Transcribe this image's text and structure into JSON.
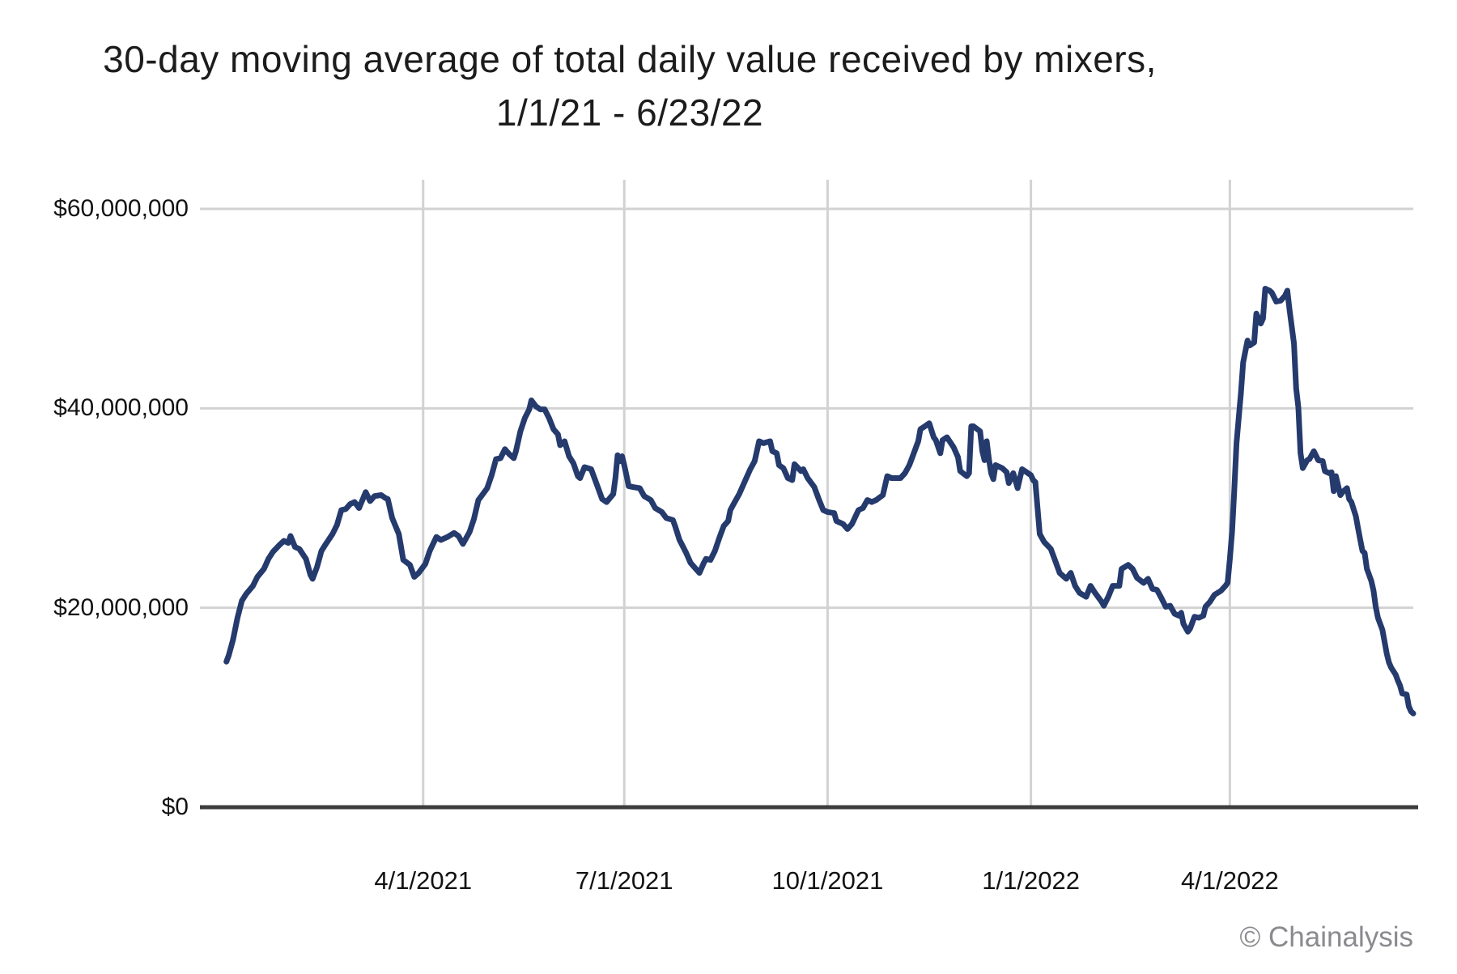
{
  "title": {
    "line1": "30-day moving average of total daily value received by mixers,",
    "line2": "1/1/21 - 6/23/22"
  },
  "watermark": "© Chainalysis",
  "colors": {
    "line": "#253a6d",
    "grid": "#d2d2d2",
    "axis": "#3d3d3d",
    "text": "#121212",
    "watermark": "#8a8a8f",
    "background": "#ffffff"
  },
  "chart_data": {
    "type": "line",
    "title": "30-day moving average of total daily value received by mixers, 1/1/21 - 6/23/22",
    "series_name": "30-day moving average of total daily value received by mixers (USD)",
    "unit": "USD, values stored in millions",
    "grid": true,
    "legend": false,
    "x_axis": {
      "start_date": "2021-01-01",
      "end_date": "2022-06-23",
      "total_days": 538,
      "tick_labels": [
        "4/1/2021",
        "7/1/2021",
        "10/1/2021",
        "1/1/2022",
        "4/1/2022"
      ],
      "tick_day_offsets": [
        90,
        181,
        273,
        365,
        455
      ]
    },
    "y_axis": {
      "tick_labels": [
        "$0",
        "$20,000,000",
        "$40,000,000",
        "$60,000,000"
      ],
      "tick_values_millions": [
        0,
        20,
        40,
        60
      ],
      "range_millions": [
        0,
        60
      ]
    },
    "points_day_valueM": [
      [
        1,
        14.6
      ],
      [
        2,
        15.2
      ],
      [
        4,
        16.8
      ],
      [
        6,
        19.0
      ],
      [
        8,
        20.7
      ],
      [
        10,
        21.4
      ],
      [
        13,
        22.2
      ],
      [
        15,
        23.1
      ],
      [
        18,
        23.9
      ],
      [
        20,
        24.9
      ],
      [
        22,
        25.6
      ],
      [
        25,
        26.3
      ],
      [
        27,
        26.7
      ],
      [
        29,
        26.5
      ],
      [
        30,
        27.2
      ],
      [
        32,
        26.1
      ],
      [
        34,
        25.9
      ],
      [
        37,
        24.9
      ],
      [
        39,
        23.3
      ],
      [
        40,
        22.9
      ],
      [
        42,
        24.1
      ],
      [
        44,
        25.7
      ],
      [
        46,
        26.4
      ],
      [
        49,
        27.4
      ],
      [
        51,
        28.3
      ],
      [
        53,
        29.8
      ],
      [
        55,
        29.9
      ],
      [
        57,
        30.4
      ],
      [
        59,
        30.6
      ],
      [
        61,
        30.0
      ],
      [
        64,
        31.6
      ],
      [
        66,
        30.7
      ],
      [
        68,
        31.2
      ],
      [
        71,
        31.3
      ],
      [
        73,
        31.0
      ],
      [
        74,
        30.9
      ],
      [
        76,
        29.0
      ],
      [
        79,
        27.4
      ],
      [
        81,
        24.8
      ],
      [
        84,
        24.3
      ],
      [
        86,
        23.1
      ],
      [
        88,
        23.5
      ],
      [
        91,
        24.4
      ],
      [
        93,
        25.7
      ],
      [
        96,
        27.1
      ],
      [
        98,
        26.8
      ],
      [
        101,
        27.1
      ],
      [
        104,
        27.5
      ],
      [
        106,
        27.2
      ],
      [
        108,
        26.4
      ],
      [
        111,
        27.6
      ],
      [
        113,
        28.9
      ],
      [
        115,
        30.8
      ],
      [
        117,
        31.4
      ],
      [
        119,
        32.0
      ],
      [
        121,
        33.3
      ],
      [
        123,
        34.9
      ],
      [
        125,
        35.0
      ],
      [
        127,
        35.9
      ],
      [
        129,
        35.4
      ],
      [
        131,
        35.0
      ],
      [
        132,
        35.7
      ],
      [
        134,
        37.7
      ],
      [
        136,
        39.0
      ],
      [
        138,
        39.9
      ],
      [
        139,
        40.8
      ],
      [
        141,
        40.2
      ],
      [
        143,
        39.9
      ],
      [
        145,
        39.9
      ],
      [
        147,
        39.0
      ],
      [
        149,
        37.9
      ],
      [
        151,
        37.4
      ],
      [
        152,
        36.3
      ],
      [
        154,
        36.7
      ],
      [
        156,
        35.2
      ],
      [
        158,
        34.5
      ],
      [
        160,
        33.2
      ],
      [
        161,
        33.0
      ],
      [
        163,
        34.1
      ],
      [
        166,
        33.9
      ],
      [
        169,
        32.1
      ],
      [
        171,
        30.9
      ],
      [
        173,
        30.6
      ],
      [
        176,
        31.4
      ],
      [
        177,
        33.0
      ],
      [
        178,
        35.3
      ],
      [
        179,
        34.7
      ],
      [
        180,
        35.2
      ],
      [
        181,
        34.3
      ],
      [
        182,
        33.3
      ],
      [
        183,
        32.2
      ],
      [
        185,
        32.1
      ],
      [
        188,
        32.0
      ],
      [
        190,
        31.2
      ],
      [
        193,
        30.8
      ],
      [
        195,
        30.0
      ],
      [
        198,
        29.6
      ],
      [
        200,
        29.0
      ],
      [
        203,
        28.8
      ],
      [
        204,
        28.2
      ],
      [
        206,
        26.8
      ],
      [
        209,
        25.5
      ],
      [
        211,
        24.5
      ],
      [
        213,
        24.0
      ],
      [
        215,
        23.5
      ],
      [
        217,
        24.5
      ],
      [
        218,
        24.9
      ],
      [
        220,
        24.8
      ],
      [
        222,
        25.7
      ],
      [
        224,
        27.0
      ],
      [
        226,
        28.2
      ],
      [
        228,
        28.7
      ],
      [
        229,
        29.8
      ],
      [
        231,
        30.6
      ],
      [
        233,
        31.4
      ],
      [
        236,
        32.9
      ],
      [
        238,
        33.9
      ],
      [
        240,
        34.7
      ],
      [
        242,
        36.7
      ],
      [
        244,
        36.5
      ],
      [
        247,
        36.7
      ],
      [
        248,
        35.7
      ],
      [
        250,
        35.5
      ],
      [
        251,
        34.3
      ],
      [
        253,
        34.0
      ],
      [
        255,
        33.0
      ],
      [
        257,
        32.8
      ],
      [
        258,
        34.4
      ],
      [
        261,
        33.7
      ],
      [
        262,
        33.9
      ],
      [
        264,
        33.0
      ],
      [
        267,
        32.1
      ],
      [
        269,
        30.9
      ],
      [
        271,
        29.8
      ],
      [
        273,
        29.6
      ],
      [
        276,
        29.5
      ],
      [
        277,
        28.7
      ],
      [
        280,
        28.4
      ],
      [
        282,
        27.9
      ],
      [
        284,
        28.4
      ],
      [
        287,
        29.8
      ],
      [
        289,
        30.0
      ],
      [
        291,
        30.8
      ],
      [
        293,
        30.6
      ],
      [
        295,
        30.8
      ],
      [
        298,
        31.3
      ],
      [
        300,
        33.2
      ],
      [
        302,
        33.0
      ],
      [
        304,
        33.0
      ],
      [
        306,
        33.0
      ],
      [
        308,
        33.5
      ],
      [
        310,
        34.3
      ],
      [
        311,
        34.9
      ],
      [
        314,
        36.7
      ],
      [
        315,
        37.9
      ],
      [
        317,
        38.2
      ],
      [
        319,
        38.5
      ],
      [
        321,
        37.1
      ],
      [
        322,
        36.8
      ],
      [
        324,
        35.5
      ],
      [
        325,
        36.8
      ],
      [
        327,
        37.1
      ],
      [
        330,
        36.1
      ],
      [
        332,
        35.1
      ],
      [
        333,
        33.7
      ],
      [
        336,
        33.2
      ],
      [
        337,
        33.5
      ],
      [
        338,
        38.2
      ],
      [
        339,
        38.2
      ],
      [
        342,
        37.7
      ],
      [
        343,
        35.7
      ],
      [
        344,
        34.8
      ],
      [
        345,
        36.7
      ],
      [
        346,
        34.9
      ],
      [
        347,
        33.5
      ],
      [
        348,
        32.9
      ],
      [
        349,
        34.3
      ],
      [
        352,
        34.0
      ],
      [
        354,
        33.6
      ],
      [
        355,
        32.5
      ],
      [
        357,
        33.5
      ],
      [
        359,
        32.0
      ],
      [
        360,
        33.0
      ],
      [
        361,
        33.9
      ],
      [
        363,
        33.6
      ],
      [
        365,
        33.3
      ],
      [
        366,
        32.8
      ],
      [
        367,
        32.6
      ],
      [
        368,
        30.0
      ],
      [
        369,
        27.4
      ],
      [
        371,
        26.6
      ],
      [
        374,
        25.9
      ],
      [
        376,
        24.7
      ],
      [
        378,
        23.5
      ],
      [
        381,
        22.9
      ],
      [
        383,
        23.5
      ],
      [
        385,
        22.2
      ],
      [
        387,
        21.5
      ],
      [
        390,
        21.1
      ],
      [
        392,
        22.2
      ],
      [
        394,
        21.5
      ],
      [
        397,
        20.6
      ],
      [
        398,
        20.2
      ],
      [
        400,
        21.1
      ],
      [
        402,
        22.2
      ],
      [
        405,
        22.2
      ],
      [
        406,
        23.9
      ],
      [
        409,
        24.3
      ],
      [
        411,
        23.9
      ],
      [
        413,
        23.0
      ],
      [
        416,
        22.5
      ],
      [
        418,
        22.9
      ],
      [
        420,
        21.9
      ],
      [
        422,
        21.8
      ],
      [
        424,
        21.0
      ],
      [
        426,
        20.1
      ],
      [
        428,
        20.2
      ],
      [
        430,
        19.4
      ],
      [
        432,
        19.2
      ],
      [
        433,
        19.5
      ],
      [
        434,
        18.4
      ],
      [
        436,
        17.6
      ],
      [
        437,
        17.9
      ],
      [
        439,
        19.1
      ],
      [
        441,
        19.0
      ],
      [
        443,
        19.2
      ],
      [
        444,
        20.1
      ],
      [
        446,
        20.6
      ],
      [
        448,
        21.3
      ],
      [
        451,
        21.7
      ],
      [
        453,
        22.2
      ],
      [
        454,
        22.5
      ],
      [
        455,
        24.9
      ],
      [
        456,
        27.6
      ],
      [
        457,
        31.7
      ],
      [
        458,
        36.5
      ],
      [
        460,
        41.5
      ],
      [
        461,
        44.6
      ],
      [
        463,
        46.8
      ],
      [
        464,
        46.3
      ],
      [
        466,
        46.6
      ],
      [
        467,
        49.5
      ],
      [
        469,
        48.5
      ],
      [
        470,
        49.0
      ],
      [
        471,
        52.0
      ],
      [
        473,
        51.8
      ],
      [
        474,
        51.6
      ],
      [
        476,
        50.7
      ],
      [
        478,
        50.8
      ],
      [
        480,
        51.3
      ],
      [
        481,
        51.8
      ],
      [
        482,
        49.9
      ],
      [
        484,
        46.5
      ],
      [
        485,
        42.0
      ],
      [
        486,
        40.1
      ],
      [
        487,
        35.5
      ],
      [
        488,
        34.0
      ],
      [
        490,
        34.8
      ],
      [
        491,
        34.9
      ],
      [
        493,
        35.7
      ],
      [
        495,
        34.8
      ],
      [
        497,
        34.7
      ],
      [
        498,
        33.7
      ],
      [
        500,
        33.5
      ],
      [
        501,
        33.6
      ],
      [
        502,
        31.7
      ],
      [
        503,
        33.2
      ],
      [
        505,
        31.3
      ],
      [
        506,
        31.6
      ],
      [
        508,
        32.0
      ],
      [
        509,
        30.9
      ],
      [
        510,
        30.6
      ],
      [
        512,
        29.2
      ],
      [
        513,
        28.0
      ],
      [
        514,
        26.8
      ],
      [
        515,
        25.7
      ],
      [
        516,
        25.5
      ],
      [
        517,
        23.9
      ],
      [
        519,
        22.7
      ],
      [
        520,
        21.7
      ],
      [
        521,
        20.1
      ],
      [
        522,
        19.0
      ],
      [
        524,
        17.8
      ],
      [
        525,
        16.6
      ],
      [
        526,
        15.4
      ],
      [
        527,
        14.5
      ],
      [
        528,
        14.0
      ],
      [
        530,
        13.3
      ],
      [
        531,
        12.7
      ],
      [
        532,
        12.2
      ],
      [
        533,
        11.4
      ],
      [
        535,
        11.3
      ],
      [
        536,
        10.1
      ],
      [
        537,
        9.6
      ],
      [
        538,
        9.4
      ]
    ]
  }
}
